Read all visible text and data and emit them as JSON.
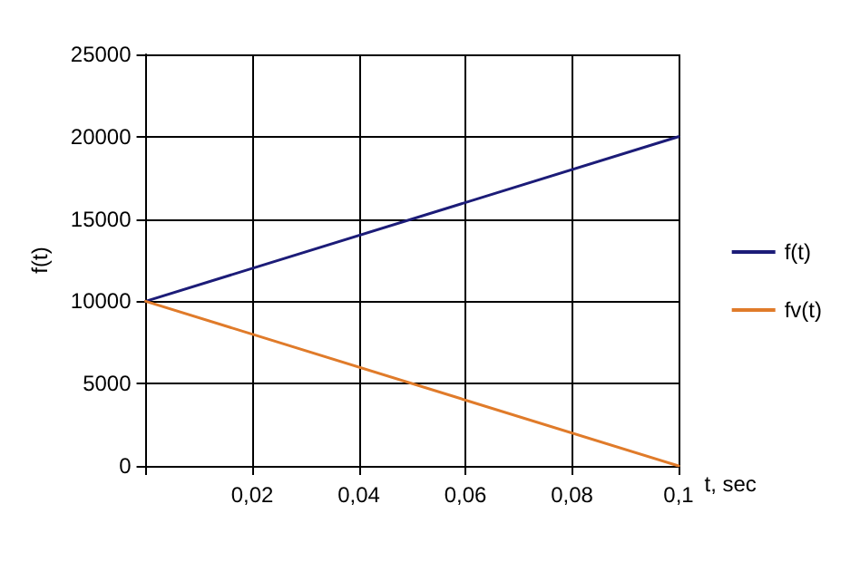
{
  "chart_data": {
    "type": "line",
    "xlabel": "t, sec",
    "ylabel": "f(t)",
    "x": [
      0,
      0.1
    ],
    "series": [
      {
        "name": "f(t)",
        "color": "#1c1c78",
        "values": [
          10000,
          20000
        ]
      },
      {
        "name": "fv(t)",
        "color": "#e07b2a",
        "values": [
          10000,
          0
        ]
      }
    ],
    "xlim": [
      0,
      0.1
    ],
    "xticks": [
      {
        "value": 0,
        "label": null
      },
      {
        "value": 0.02,
        "label": "0,02"
      },
      {
        "value": 0.04,
        "label": "0,04"
      },
      {
        "value": 0.06,
        "label": "0,06"
      },
      {
        "value": 0.08,
        "label": "0,08"
      },
      {
        "value": 0.1,
        "label": "0,1"
      }
    ],
    "ylim": [
      0,
      25000
    ],
    "yticks": [
      0,
      5000,
      10000,
      15000,
      20000,
      25000
    ],
    "grid": true,
    "legend": "right",
    "marker": "none",
    "line_style": "solid"
  }
}
